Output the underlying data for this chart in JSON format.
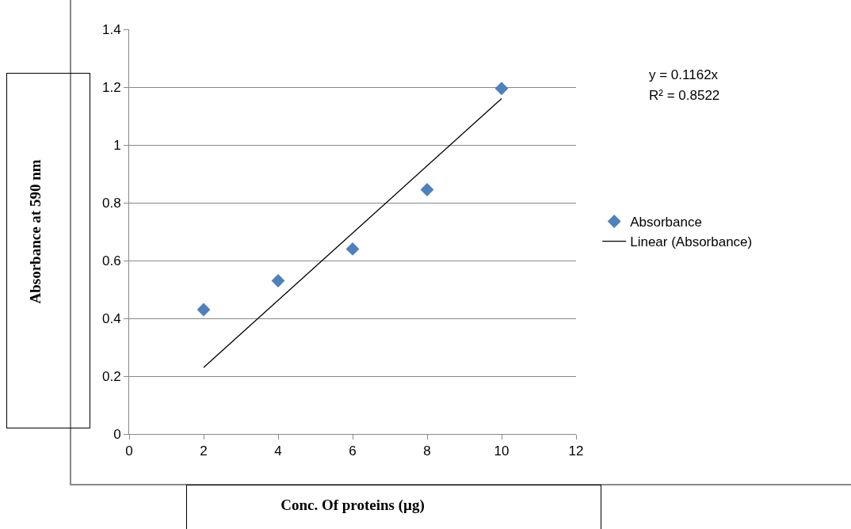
{
  "chart_data": {
    "type": "scatter",
    "xlabel": "Conc. Of proteins (µg)",
    "ylabel": "Absorbance at 590 nm",
    "x": [
      2,
      4,
      6,
      8,
      10
    ],
    "series": [
      {
        "name": "Absorbance",
        "color": "#4f81bd",
        "marker": "diamond",
        "values": [
          0.43,
          0.53,
          0.64,
          0.845,
          1.195
        ]
      },
      {
        "name": "Linear (Absorbance)",
        "type": "line",
        "color": "#000000",
        "marker": "none",
        "x": [
          2,
          10
        ],
        "values": [
          0.23,
          1.16
        ]
      }
    ],
    "xlim": [
      0,
      12
    ],
    "xticks": [
      0,
      2,
      4,
      6,
      8,
      10,
      12
    ],
    "ylim": [
      0,
      1.4
    ],
    "yticks": [
      0,
      0.2,
      0.4,
      0.6,
      0.8,
      1,
      1.2,
      1.4
    ],
    "grid": "y",
    "legend": "right",
    "annotations": [
      "y = 0.1162x",
      "R² = 0.8522"
    ]
  }
}
